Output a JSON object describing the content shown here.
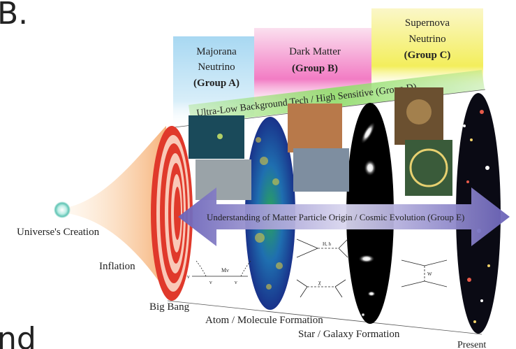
{
  "corner": {
    "top_left": "B.",
    "bottom_left": "nd"
  },
  "groups": {
    "a": {
      "line1": "Majorana",
      "line2": "Neutrino",
      "line3": "(Group A)"
    },
    "b": {
      "line1": "Dark Matter",
      "line2": "(Group B)"
    },
    "c": {
      "line1": "Supernova",
      "line2": "Neutrino",
      "line3": "(Group C)"
    },
    "d": {
      "text": "Ultra-Low Background Tech / High Sensitive (Group D)"
    },
    "e": {
      "text": "Understanding of Matter Particle Origin / Cosmic Evolution (Group E)"
    }
  },
  "timeline": {
    "creation": "Universe's Creation",
    "inflation": "Inflation",
    "big_bang": "Big Bang",
    "atom": "Atom / Molecule Formation",
    "star": "Star / Galaxy Formation",
    "present": "Present"
  },
  "feynman": {
    "left_nu1": "ν",
    "left_nu2": "ν",
    "mass": "Mν",
    "right_nu": "ν",
    "dm_label": "H, h",
    "chi": "χ",
    "w_label": "W"
  },
  "colors": {
    "group_a": "#bfe3f5",
    "group_b": "#f59ad0",
    "group_c": "#f6f27a",
    "group_d": "#9fe07a",
    "arrow": "#7a70c0",
    "bigbang_rings": "#e0392b"
  }
}
